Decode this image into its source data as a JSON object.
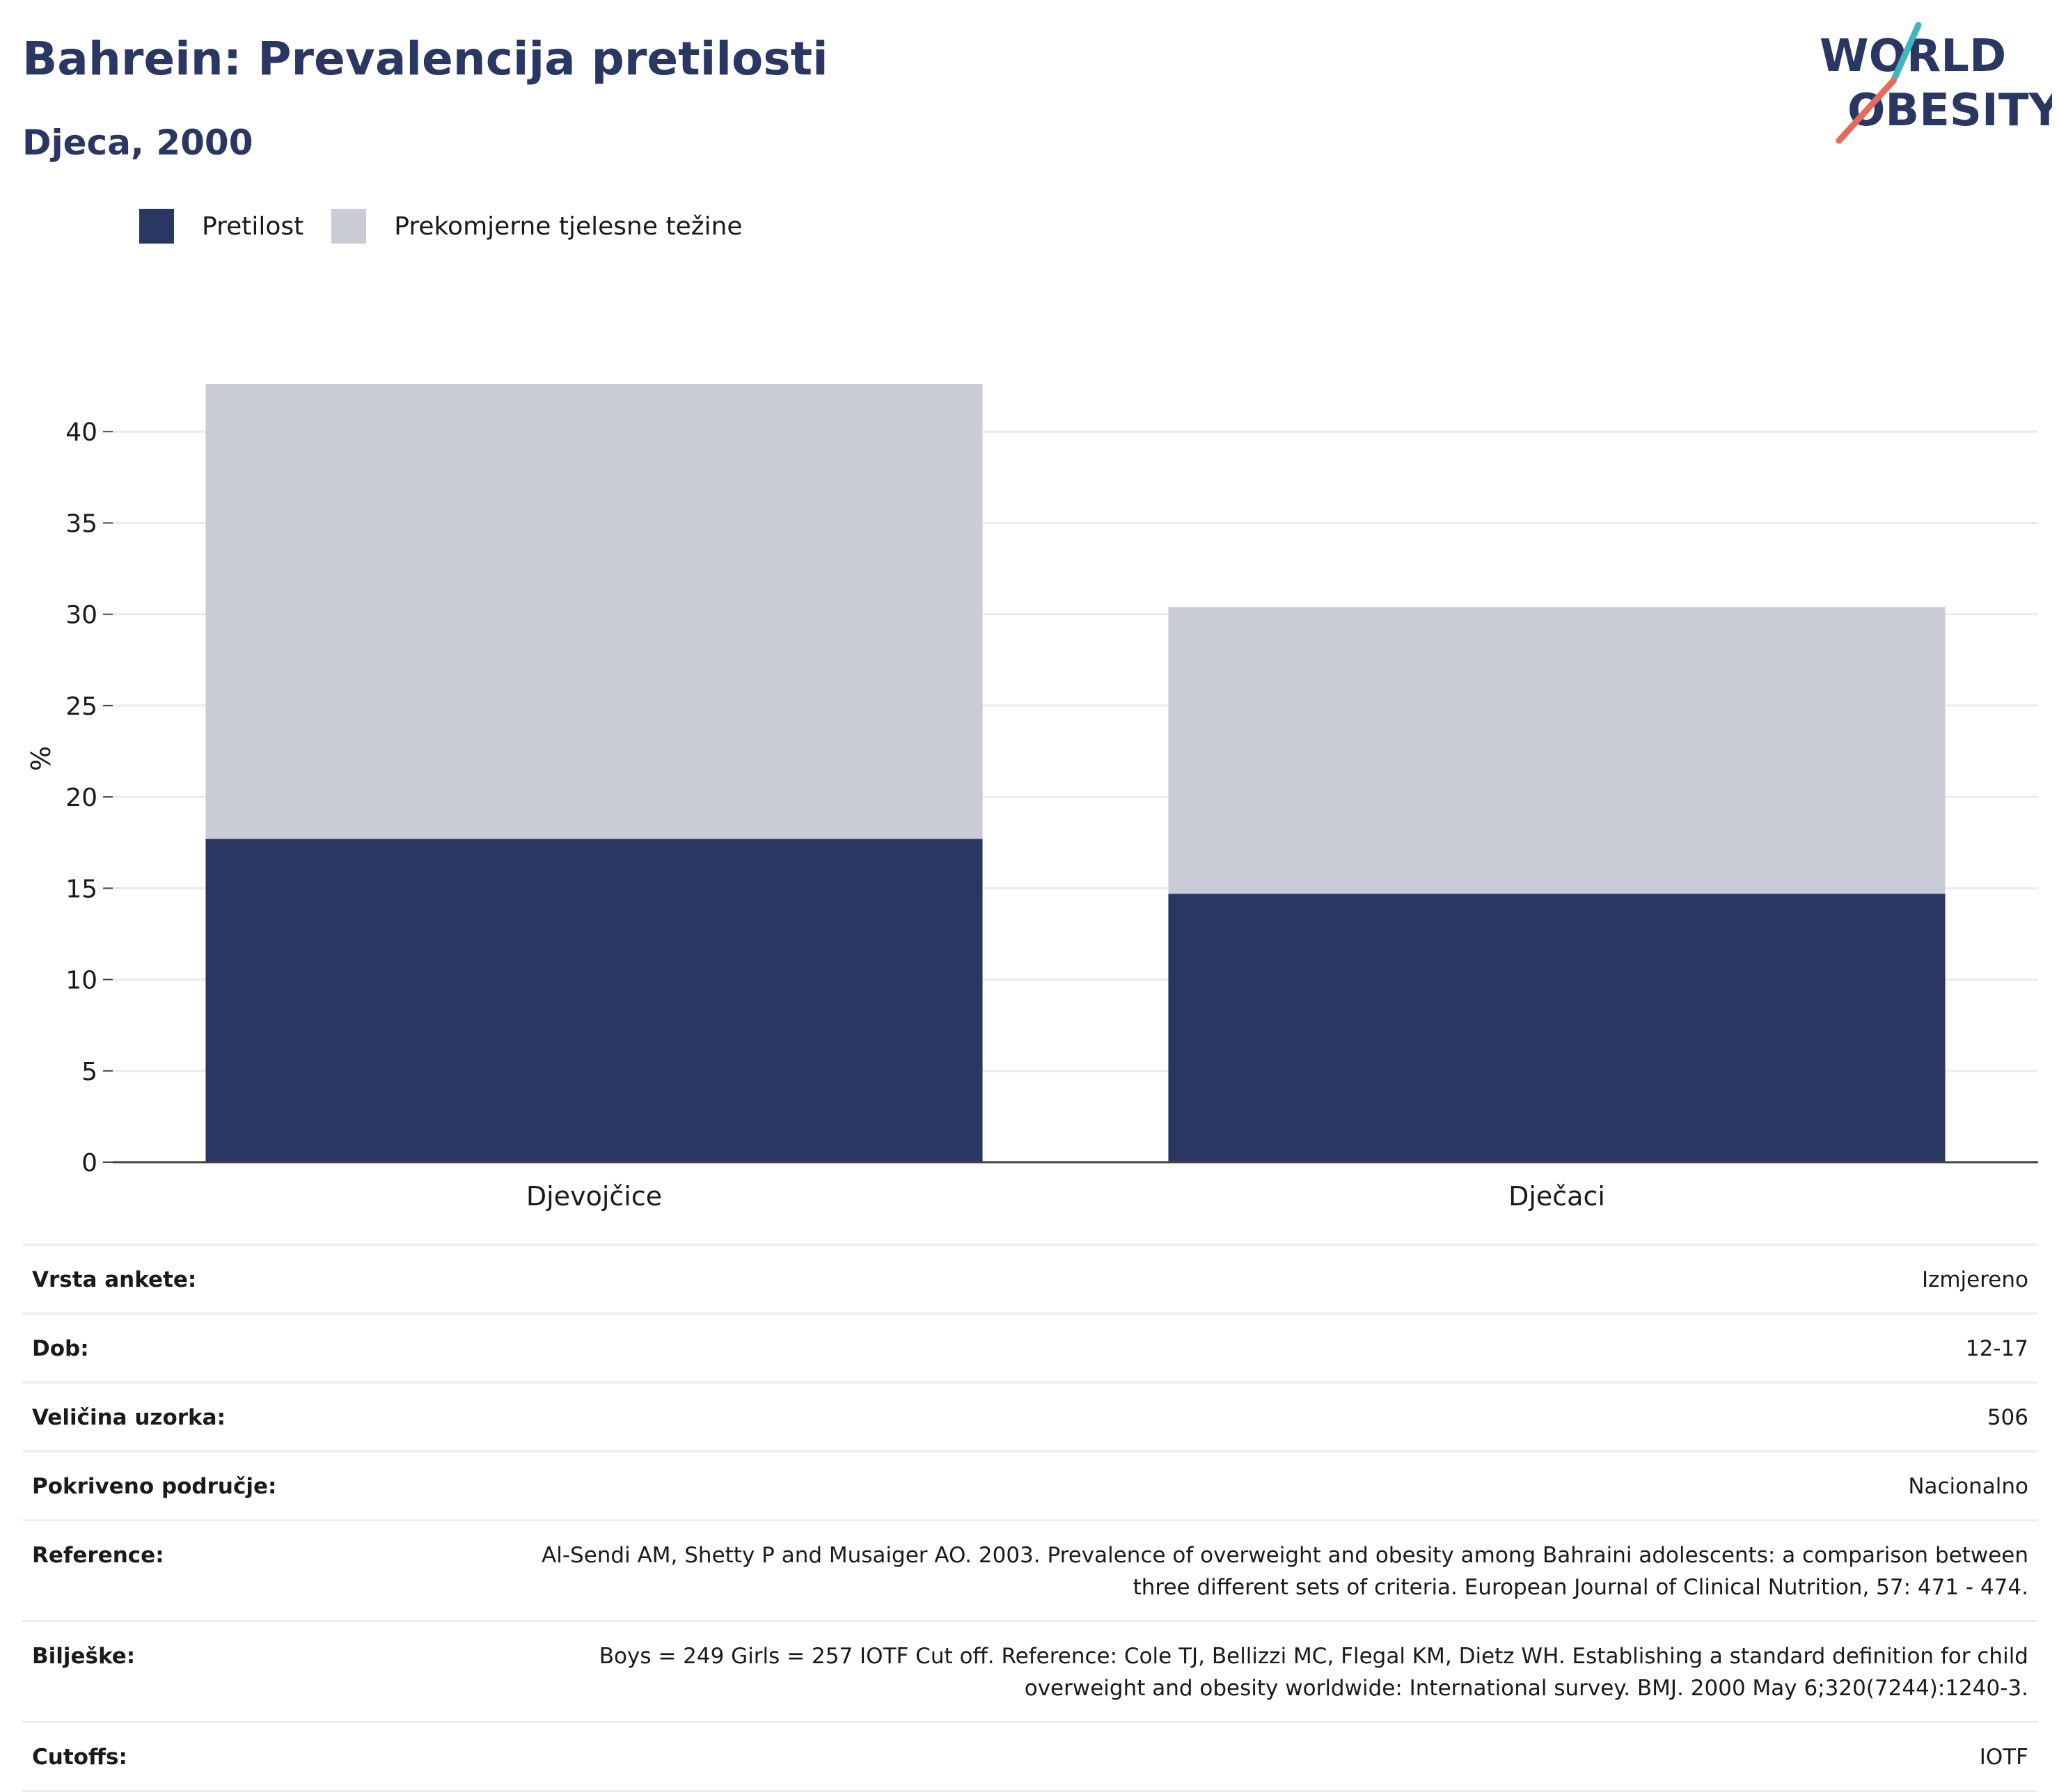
{
  "header": {
    "title": "Bahrein: Prevalencija pretilosti",
    "subtitle": "Djeca, 2000"
  },
  "logo": {
    "line1": "WORLD",
    "line2": "OBESITY"
  },
  "legend": {
    "items": [
      {
        "label": "Pretilost",
        "color": "#2b3763"
      },
      {
        "label": "Prekomjerne tjelesne težine",
        "color": "#c9ccd7"
      }
    ]
  },
  "chart_data": {
    "type": "bar",
    "stacked": true,
    "categories": [
      "Djevojčice",
      "Dječaci"
    ],
    "series": [
      {
        "name": "Pretilost",
        "values": [
          17.7,
          14.7
        ],
        "color": "#2b3763"
      },
      {
        "name": "Prekomjerne tjelesne težine",
        "values": [
          24.9,
          15.7
        ],
        "color": "#c9ccd7"
      }
    ],
    "ylabel": "%",
    "ylim": [
      0,
      42.6
    ],
    "yticks": [
      0,
      5,
      10,
      15,
      20,
      25,
      30,
      35,
      40
    ],
    "grid": true,
    "legend_position": "top-left"
  },
  "meta": {
    "rows": [
      {
        "label": "Vrsta ankete:",
        "value": "Izmjereno"
      },
      {
        "label": "Dob:",
        "value": "12-17"
      },
      {
        "label": "Veličina uzorka:",
        "value": "506"
      },
      {
        "label": "Pokriveno područje:",
        "value": "Nacionalno"
      },
      {
        "label": "Reference:",
        "value": "Al-Sendi AM, Shetty P and Musaiger AO. 2003. Prevalence of overweight and obesity among Bahraini adolescents: a comparison between three different sets of criteria. European Journal of Clinical Nutrition, 57: 471 - 474."
      },
      {
        "label": "Bilješke:",
        "value": "Boys = 249 Girls = 257 IOTF Cut off. Reference: Cole TJ, Bellizzi MC, Flegal KM, Dietz WH. Establishing a standard definition for child overweight and obesity worldwide: International survey. BMJ. 2000 May 6;320(7244):1240-3."
      },
      {
        "label": "Cutoffs:",
        "value": "IOTF"
      }
    ]
  }
}
